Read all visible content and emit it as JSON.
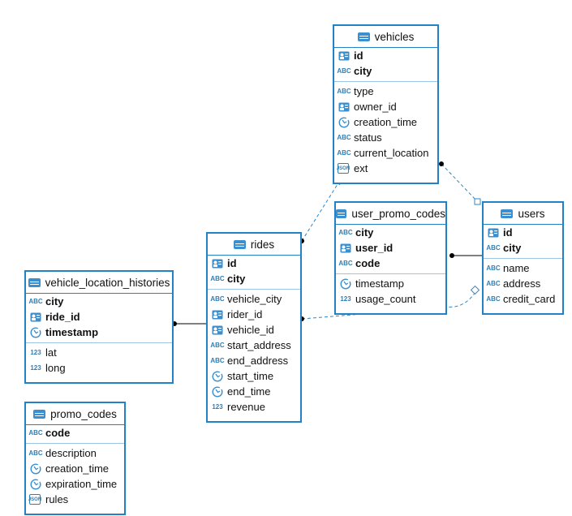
{
  "tables": [
    {
      "name": "vehicles",
      "keys": [
        {
          "name": "id",
          "icon": "key"
        },
        {
          "name": "city",
          "icon": "ABC"
        }
      ],
      "columns": [
        {
          "name": "type",
          "icon": "ABC"
        },
        {
          "name": "owner_id",
          "icon": "key"
        },
        {
          "name": "creation_time",
          "icon": "clock"
        },
        {
          "name": "status",
          "icon": "ABC"
        },
        {
          "name": "current_location",
          "icon": "ABC"
        },
        {
          "name": "ext",
          "icon": "JSON"
        }
      ]
    },
    {
      "name": "users",
      "keys": [
        {
          "name": "id",
          "icon": "key"
        },
        {
          "name": "city",
          "icon": "ABC"
        }
      ],
      "columns": [
        {
          "name": "name",
          "icon": "ABC"
        },
        {
          "name": "address",
          "icon": "ABC"
        },
        {
          "name": "credit_card",
          "icon": "ABC"
        }
      ]
    },
    {
      "name": "user_promo_codes",
      "keys": [
        {
          "name": "city",
          "icon": "ABC"
        },
        {
          "name": "user_id",
          "icon": "key"
        },
        {
          "name": "code",
          "icon": "ABC"
        }
      ],
      "columns": [
        {
          "name": "timestamp",
          "icon": "clock"
        },
        {
          "name": "usage_count",
          "icon": "123"
        }
      ]
    },
    {
      "name": "rides",
      "keys": [
        {
          "name": "id",
          "icon": "key"
        },
        {
          "name": "city",
          "icon": "ABC"
        }
      ],
      "columns": [
        {
          "name": "vehicle_city",
          "icon": "ABC"
        },
        {
          "name": "rider_id",
          "icon": "key"
        },
        {
          "name": "vehicle_id",
          "icon": "key"
        },
        {
          "name": "start_address",
          "icon": "ABC"
        },
        {
          "name": "end_address",
          "icon": "ABC"
        },
        {
          "name": "start_time",
          "icon": "clock"
        },
        {
          "name": "end_time",
          "icon": "clock"
        },
        {
          "name": "revenue",
          "icon": "123"
        }
      ]
    },
    {
      "name": "vehicle_location_histories",
      "keys": [
        {
          "name": "city",
          "icon": "ABC"
        },
        {
          "name": "ride_id",
          "icon": "key"
        },
        {
          "name": "timestamp",
          "icon": "clock"
        }
      ],
      "columns": [
        {
          "name": "lat",
          "icon": "123"
        },
        {
          "name": "long",
          "icon": "123"
        }
      ]
    },
    {
      "name": "promo_codes",
      "keys": [
        {
          "name": "code",
          "icon": "ABC"
        }
      ],
      "columns": [
        {
          "name": "description",
          "icon": "ABC"
        },
        {
          "name": "creation_time",
          "icon": "clock"
        },
        {
          "name": "expiration_time",
          "icon": "clock"
        },
        {
          "name": "rules",
          "icon": "JSON"
        }
      ]
    }
  ]
}
